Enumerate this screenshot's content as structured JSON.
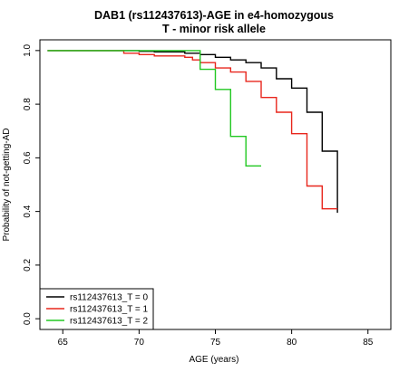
{
  "chart_data": {
    "type": "line",
    "title": "DAB1 (rs112437613)-AGE in e4-homozygous",
    "subtitle": "T - minor risk allele",
    "xlabel": "AGE (years)",
    "ylabel": "Probability of not-getting-AD",
    "xlim": [
      63.5,
      86.5
    ],
    "ylim": [
      -0.04,
      1.04
    ],
    "x_ticks": [
      65,
      70,
      75,
      80,
      85
    ],
    "y_ticks": [
      0.0,
      0.2,
      0.4,
      0.6,
      0.8,
      1.0
    ],
    "x_tick_labels": [
      "65",
      "70",
      "75",
      "80",
      "85"
    ],
    "y_tick_labels": [
      "0.0",
      "0.2",
      "0.4",
      "0.6",
      "0.8",
      "1.0"
    ],
    "step_plot": true,
    "grid": false,
    "legend_position": "bottom-left",
    "series": [
      {
        "name": "rs112437613_T = 0",
        "color": "#000000",
        "steps": [
          [
            64,
            1.0
          ],
          [
            70,
            0.997
          ],
          [
            71,
            0.995
          ],
          [
            73,
            0.99
          ],
          [
            74,
            0.985
          ],
          [
            75,
            0.975
          ],
          [
            76,
            0.965
          ],
          [
            77,
            0.955
          ],
          [
            78,
            0.935
          ],
          [
            79,
            0.895
          ],
          [
            80,
            0.86
          ],
          [
            81,
            0.77
          ],
          [
            82,
            0.625
          ],
          [
            83,
            0.395
          ]
        ],
        "end_x": 83
      },
      {
        "name": "rs112437613_T = 1",
        "color": "#e8261c",
        "steps": [
          [
            64,
            1.0
          ],
          [
            69,
            0.99
          ],
          [
            70,
            0.985
          ],
          [
            71,
            0.98
          ],
          [
            73,
            0.975
          ],
          [
            73.5,
            0.965
          ],
          [
            74,
            0.955
          ],
          [
            75,
            0.935
          ],
          [
            76,
            0.92
          ],
          [
            77,
            0.885
          ],
          [
            78,
            0.825
          ],
          [
            79,
            0.77
          ],
          [
            80,
            0.69
          ],
          [
            81,
            0.495
          ],
          [
            82,
            0.41
          ]
        ],
        "end_x": 83
      },
      {
        "name": "rs112437613_T = 2",
        "color": "#22c822",
        "steps": [
          [
            64,
            1.0
          ],
          [
            74,
            0.93
          ],
          [
            75,
            0.855
          ],
          [
            76,
            0.68
          ],
          [
            77,
            0.57
          ]
        ],
        "end_x": 78
      }
    ]
  }
}
